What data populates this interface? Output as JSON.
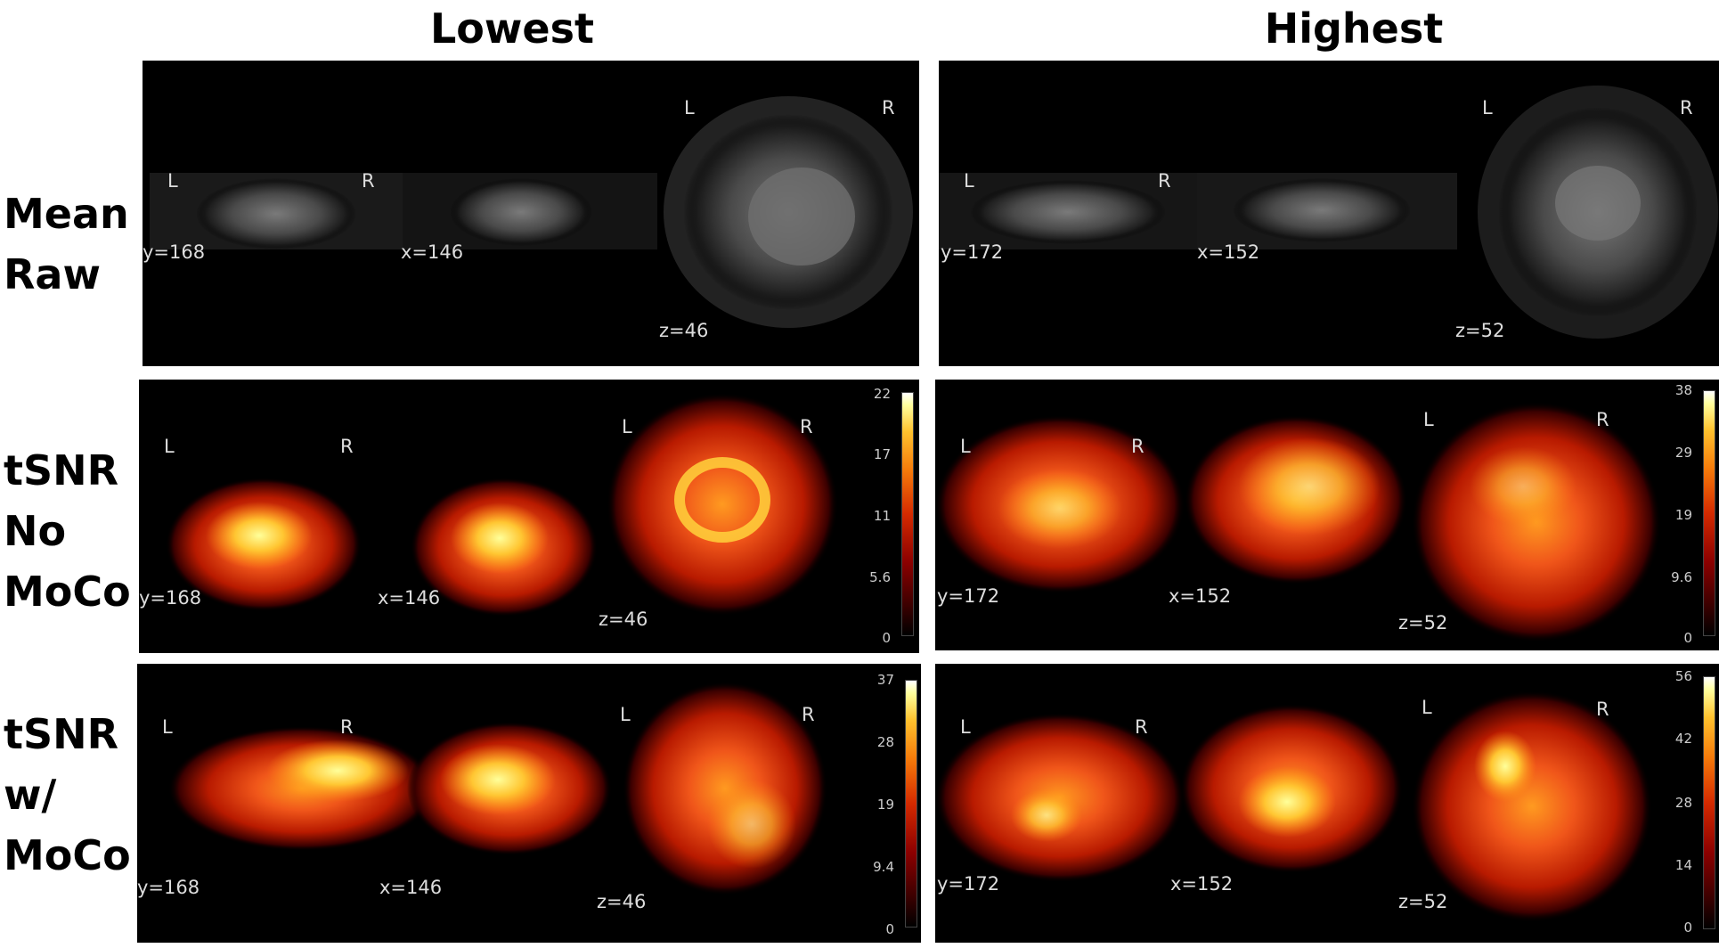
{
  "columns": {
    "lowest": "Lowest",
    "highest": "Highest"
  },
  "rows": {
    "mean_raw": [
      "Mean",
      "Raw"
    ],
    "no_moco": [
      "tSNR",
      "No",
      "MoCo"
    ],
    "w_moco": [
      "tSNR",
      "w/",
      "MoCo"
    ]
  },
  "orientation": {
    "left": "L",
    "right": "R"
  },
  "lowest": {
    "y": "y=168",
    "x": "x=146",
    "z": "z=46"
  },
  "highest": {
    "y": "y=172",
    "x": "x=152",
    "z": "z=52"
  },
  "colorbars": {
    "no_moco_lowest": [
      "22",
      "17",
      "11",
      "5.6",
      "0"
    ],
    "no_moco_highest": [
      "38",
      "29",
      "19",
      "9.6",
      "0"
    ],
    "w_moco_lowest": [
      "37",
      "28",
      "19",
      "9.4",
      "0"
    ],
    "w_moco_highest": [
      "56",
      "42",
      "28",
      "14",
      "0"
    ]
  },
  "colormap": {
    "raw": "grayscale",
    "tsnr": "hot"
  }
}
